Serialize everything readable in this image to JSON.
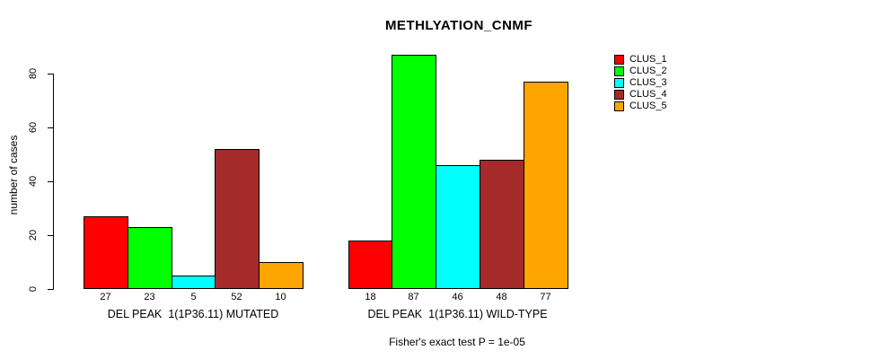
{
  "chart_data": {
    "type": "bar",
    "title": "METHLYATION_CNMF",
    "ylabel": "number of cases",
    "xlabel": "",
    "ylim": [
      0,
      80
    ],
    "yticks": [
      0,
      20,
      40,
      60,
      80
    ],
    "grid": false,
    "legend_position": "right",
    "series": [
      {
        "name": "CLUS_1",
        "color": "#FF0000"
      },
      {
        "name": "CLUS_2",
        "color": "#00FF00"
      },
      {
        "name": "CLUS_3",
        "color": "#00FFFF"
      },
      {
        "name": "CLUS_4",
        "color": "#A52A2A"
      },
      {
        "name": "CLUS_5",
        "color": "#FFA500"
      }
    ],
    "groups": [
      {
        "label": "DEL PEAK  1(1P36.11) MUTATED",
        "values": [
          27,
          23,
          5,
          52,
          10
        ]
      },
      {
        "label": "DEL PEAK  1(1P36.11) WILD-TYPE",
        "values": [
          18,
          87,
          46,
          48,
          77
        ]
      }
    ],
    "annotation": "Fisher's exact test P = 1e-05"
  }
}
